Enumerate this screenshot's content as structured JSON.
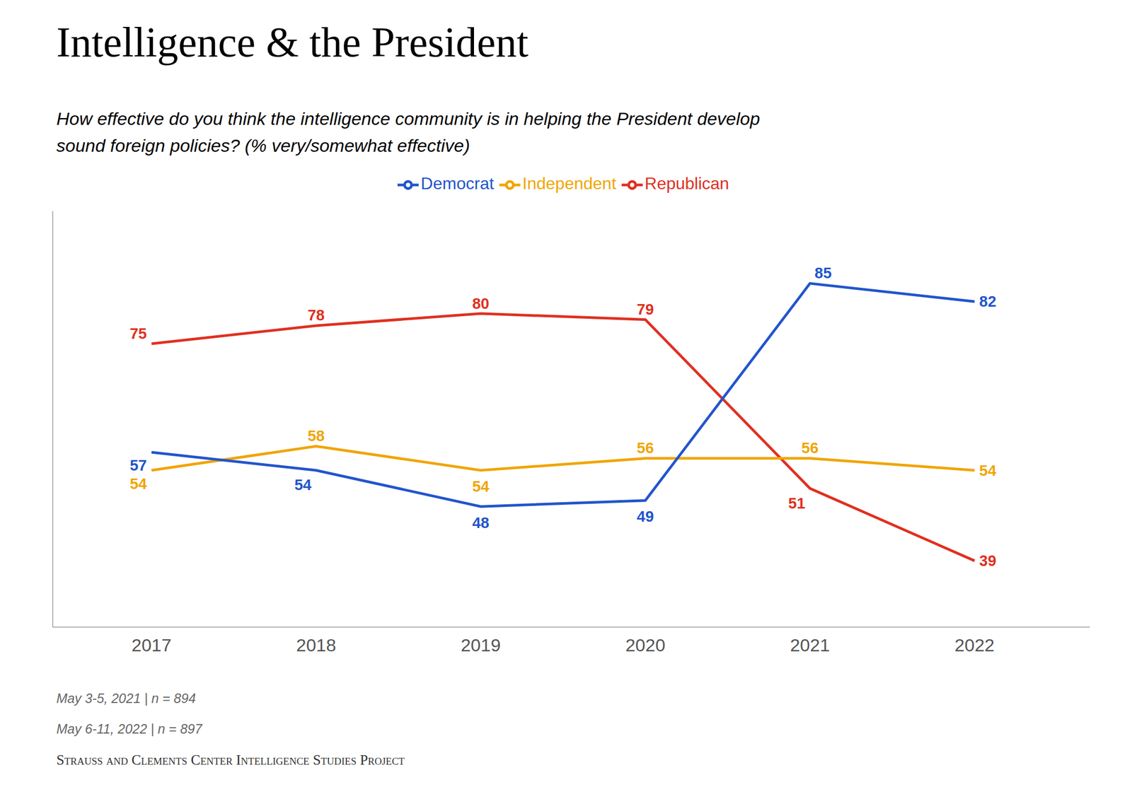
{
  "chart_data": {
    "type": "line",
    "title": "Intelligence & the President",
    "subtitle": "How effective do you think the intelligence community is in helping the President develop\nsound foreign policies? (% very/somewhat effective)",
    "x": [
      2017,
      2018,
      2019,
      2020,
      2021,
      2022
    ],
    "series": [
      {
        "name": "Democrat",
        "color": "#2255cc",
        "values": [
          57,
          54,
          48,
          49,
          85,
          82
        ]
      },
      {
        "name": "Independent",
        "color": "#f0a500",
        "values": [
          54,
          58,
          54,
          56,
          56,
          54
        ]
      },
      {
        "name": "Republican",
        "color": "#e03020",
        "values": [
          75,
          78,
          80,
          79,
          51,
          39
        ]
      }
    ],
    "xlim": [
      2016.4,
      2022.7
    ],
    "xticks": [
      2017,
      2018,
      2019,
      2020,
      2021,
      2022
    ],
    "ylim": [
      28,
      97
    ],
    "grid": false,
    "legend": "top",
    "data_labels": true,
    "tick_labels": "x",
    "annotations": [
      "May 3-5, 2021 | n = 894",
      "May 6-11, 2022 | n = 897",
      "Strauss and Clements Center Intelligence Studies Project"
    ]
  }
}
